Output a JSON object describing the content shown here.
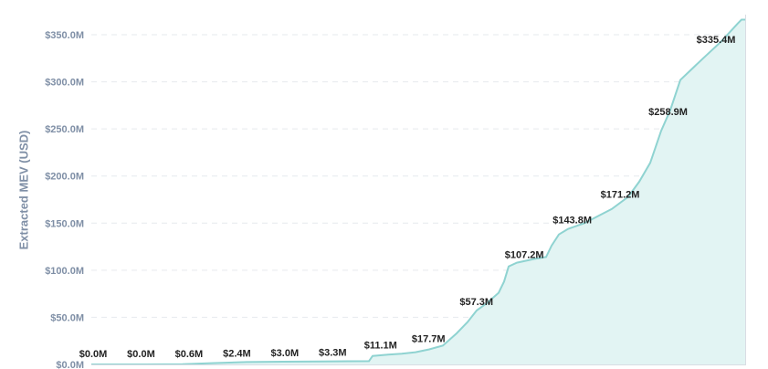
{
  "chart_data": {
    "type": "area",
    "ylabel": "Extracted MEV (USD)",
    "ylim": [
      0,
      350
    ],
    "yticks": [
      "$0.0M",
      "$50.0M",
      "$100.0M",
      "$150.0M",
      "$200.0M",
      "$250.0M",
      "$300.0M",
      "$350.0M"
    ],
    "grid": true,
    "colors": {
      "line": "#8fd3d1",
      "fill": "#e2f4f3",
      "grid": "#e6e9ee",
      "tick_text": "#7f8fa6",
      "label_text": "#222222"
    },
    "series": [
      {
        "values": [
          0.0,
          0.0,
          0.6,
          2.4,
          3.0,
          3.3,
          11.1,
          17.7,
          57.3,
          107.2,
          143.8,
          171.2,
          258.9,
          335.4
        ],
        "data_labels": [
          "$0.0M",
          "$0.0M",
          "$0.6M",
          "$2.4M",
          "$3.0M",
          "$3.3M",
          "$11.1M",
          "$17.7M",
          "$57.3M",
          "$107.2M",
          "$143.8M",
          "$171.2M",
          "$258.9M",
          "$335.4M"
        ]
      }
    ]
  }
}
